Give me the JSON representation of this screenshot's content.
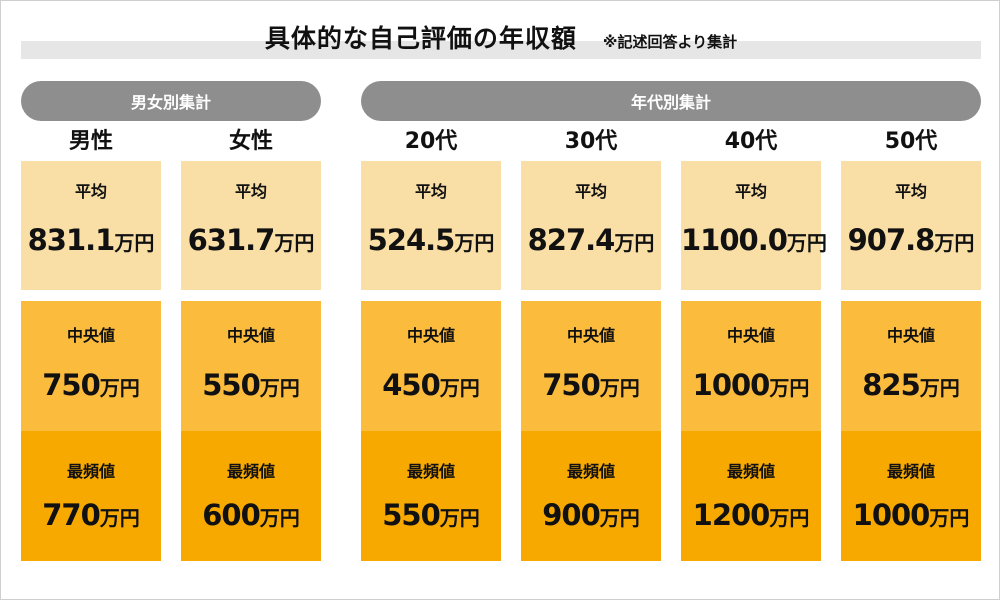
{
  "title": "具体的な自己評価の年収額",
  "note": "※記述回答より集計",
  "unit": "万円",
  "groups": [
    {
      "label": "男女別集計"
    },
    {
      "label": "年代別集計"
    }
  ],
  "colors": {
    "average": "#f9dfa6",
    "median": "#fbbb3d",
    "mode": "#f8a900",
    "pill": "#8e8e8e",
    "title_band": "#e6e6e6"
  },
  "chart_data": {
    "type": "table",
    "title": "具体的な自己評価の年収額",
    "subtitle": "※記述回答より集計",
    "rows": [
      "平均",
      "中央値",
      "最頻値"
    ],
    "columns": [
      {
        "group": "男女別集計",
        "name": "男性",
        "average": "831.1",
        "median": "750",
        "mode": "770"
      },
      {
        "group": "男女別集計",
        "name": "女性",
        "average": "631.7",
        "median": "550",
        "mode": "600"
      },
      {
        "group": "年代別集計",
        "name": "20代",
        "average": "524.5",
        "median": "450",
        "mode": "550"
      },
      {
        "group": "年代別集計",
        "name": "30代",
        "average": "827.4",
        "median": "750",
        "mode": "900"
      },
      {
        "group": "年代別集計",
        "name": "40代",
        "average": "1100.0",
        "median": "1000",
        "mode": "1200"
      },
      {
        "group": "年代別集計",
        "name": "50代",
        "average": "907.8",
        "median": "825",
        "mode": "1000"
      }
    ]
  }
}
